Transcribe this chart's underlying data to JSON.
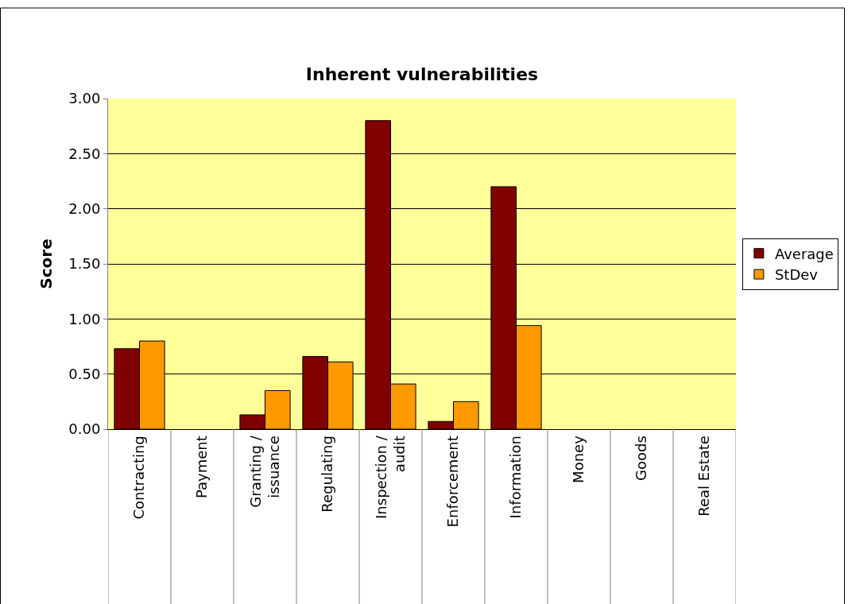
{
  "chart_data": {
    "type": "bar",
    "title": "Inherent vulnerabilities",
    "ylabel": "Score",
    "categories": [
      "Contracting",
      "Payment",
      "Granting / issuance",
      "Regulating",
      "Inspection / audit",
      "Enforcement",
      "Information",
      "Money",
      "Goods",
      "Real Estate"
    ],
    "series": [
      {
        "name": "Average",
        "color": "#800000",
        "values": [
          0.73,
          null,
          0.13,
          0.66,
          2.8,
          0.07,
          2.2,
          null,
          null,
          null
        ]
      },
      {
        "name": "StDev",
        "color": "#ff9900",
        "values": [
          0.8,
          null,
          0.35,
          0.61,
          0.41,
          0.25,
          0.94,
          null,
          null,
          null
        ]
      }
    ],
    "ylim": [
      0,
      3
    ],
    "yticks": [
      {
        "value": 0,
        "label": "0.00"
      },
      {
        "value": 0.5,
        "label": "0.50"
      },
      {
        "value": 1,
        "label": "1.00"
      },
      {
        "value": 1.5,
        "label": "1.50"
      },
      {
        "value": 2,
        "label": "2.00"
      },
      {
        "value": 2.5,
        "label": "2.50"
      },
      {
        "value": 3,
        "label": "3.00"
      }
    ],
    "grid": "y",
    "legend": "right"
  }
}
